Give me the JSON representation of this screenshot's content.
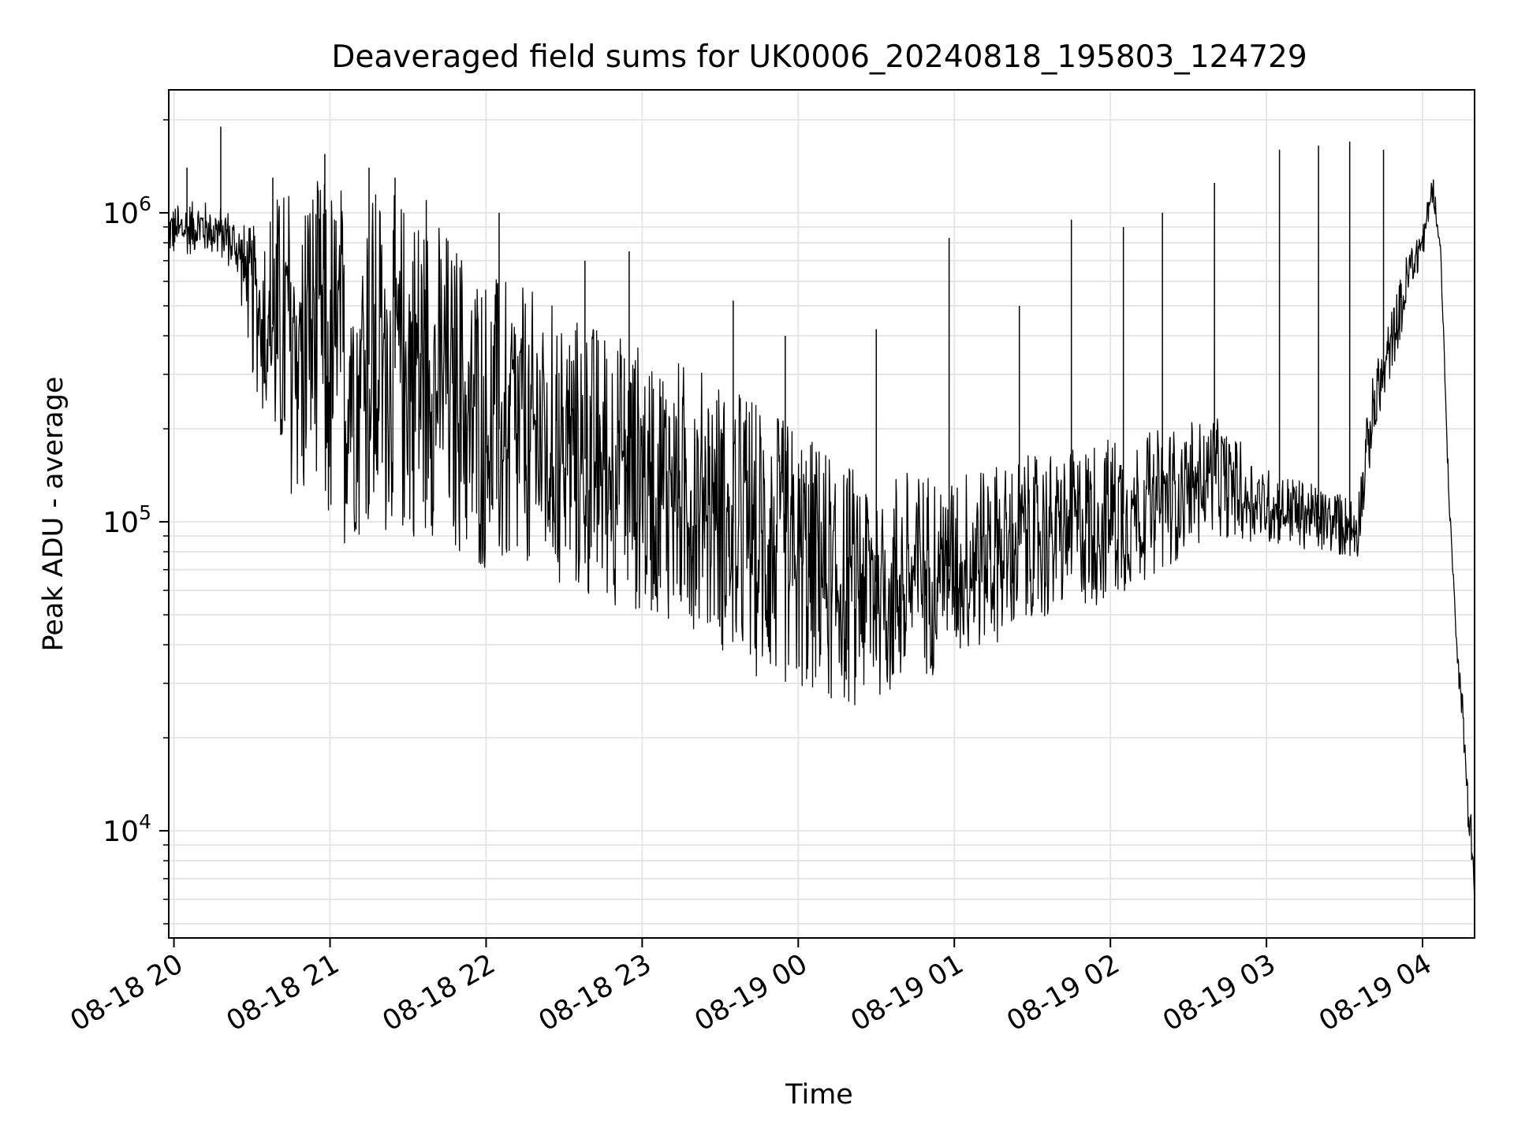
{
  "chart_data": {
    "type": "line",
    "title": "Deaveraged field sums for UK0006_20240818_195803_124729",
    "xlabel": "Time",
    "ylabel": "Peak ADU - average",
    "yscale": "log",
    "grid": true,
    "xlim": [
      "2024-08-18T19:58:00",
      "2024-08-19T04:20:00"
    ],
    "ylim": [
      4500,
      2500000
    ],
    "x_ticks": [
      {
        "t": "2024-08-18T20:00:00",
        "label": "08-18 20"
      },
      {
        "t": "2024-08-18T21:00:00",
        "label": "08-18 21"
      },
      {
        "t": "2024-08-18T22:00:00",
        "label": "08-18 22"
      },
      {
        "t": "2024-08-18T23:00:00",
        "label": "08-18 23"
      },
      {
        "t": "2024-08-19T00:00:00",
        "label": "08-19 00"
      },
      {
        "t": "2024-08-19T01:00:00",
        "label": "08-19 01"
      },
      {
        "t": "2024-08-19T02:00:00",
        "label": "08-19 02"
      },
      {
        "t": "2024-08-19T03:00:00",
        "label": "08-19 03"
      },
      {
        "t": "2024-08-19T04:00:00",
        "label": "08-19 04"
      }
    ],
    "y_ticks": [
      {
        "value": 10000,
        "base": "10",
        "exp": "4"
      },
      {
        "value": 100000,
        "base": "10",
        "exp": "5"
      },
      {
        "value": 1000000,
        "base": "10",
        "exp": "6"
      }
    ],
    "series": [
      {
        "color": "#000000",
        "envelope": [
          {
            "t": "2024-08-18T19:58:00",
            "low": 720000,
            "high": 1050000
          },
          {
            "t": "2024-08-18T20:10:00",
            "low": 740000,
            "high": 1100000
          },
          {
            "t": "2024-08-18T20:20:00",
            "low": 700000,
            "high": 1050000
          },
          {
            "t": "2024-08-18T20:25:00",
            "low": 550000,
            "high": 950000
          },
          {
            "t": "2024-08-18T20:30:00",
            "low": 300000,
            "high": 900000
          },
          {
            "t": "2024-08-18T20:35:00",
            "low": 200000,
            "high": 1000000
          },
          {
            "t": "2024-08-18T20:40:00",
            "low": 150000,
            "high": 1200000
          },
          {
            "t": "2024-08-18T20:50:00",
            "low": 100000,
            "high": 1300000
          },
          {
            "t": "2024-08-18T21:00:00",
            "low": 85000,
            "high": 1300000
          },
          {
            "t": "2024-08-18T21:20:00",
            "low": 85000,
            "high": 1200000
          },
          {
            "t": "2024-08-18T21:40:00",
            "low": 90000,
            "high": 1000000
          },
          {
            "t": "2024-08-18T22:00:00",
            "low": 65000,
            "high": 650000
          },
          {
            "t": "2024-08-18T22:20:00",
            "low": 60000,
            "high": 550000
          },
          {
            "t": "2024-08-18T22:40:00",
            "low": 55000,
            "high": 450000
          },
          {
            "t": "2024-08-18T23:00:00",
            "low": 50000,
            "high": 380000
          },
          {
            "t": "2024-08-18T23:20:00",
            "low": 45000,
            "high": 320000
          },
          {
            "t": "2024-08-18T23:40:00",
            "low": 32000,
            "high": 270000
          },
          {
            "t": "2024-08-19T00:00:00",
            "low": 28000,
            "high": 200000
          },
          {
            "t": "2024-08-19T00:20:00",
            "low": 25000,
            "high": 160000
          },
          {
            "t": "2024-08-19T00:40:00",
            "low": 28000,
            "high": 150000
          },
          {
            "t": "2024-08-19T01:00:00",
            "low": 35000,
            "high": 150000
          },
          {
            "t": "2024-08-19T01:20:00",
            "low": 42000,
            "high": 160000
          },
          {
            "t": "2024-08-19T01:40:00",
            "low": 48000,
            "high": 170000
          },
          {
            "t": "2024-08-19T02:00:00",
            "low": 55000,
            "high": 190000
          },
          {
            "t": "2024-08-19T02:20:00",
            "low": 70000,
            "high": 200000
          },
          {
            "t": "2024-08-19T02:40:00",
            "low": 90000,
            "high": 220000
          },
          {
            "t": "2024-08-19T03:00:00",
            "low": 85000,
            "high": 150000
          },
          {
            "t": "2024-08-19T03:20:00",
            "low": 80000,
            "high": 130000
          },
          {
            "t": "2024-08-19T03:35:00",
            "low": 75000,
            "high": 120000
          },
          {
            "t": "2024-08-19T03:40:00",
            "low": 150000,
            "high": 280000
          },
          {
            "t": "2024-08-19T03:48:00",
            "low": 300000,
            "high": 480000
          },
          {
            "t": "2024-08-19T03:55:00",
            "low": 500000,
            "high": 800000
          },
          {
            "t": "2024-08-19T04:00:00",
            "low": 700000,
            "high": 950000
          },
          {
            "t": "2024-08-19T04:04:00",
            "low": 1100000,
            "high": 1350000
          },
          {
            "t": "2024-08-19T04:07:00",
            "low": 700000,
            "high": 800000
          },
          {
            "t": "2024-08-19T04:10:00",
            "low": 120000,
            "high": 140000
          },
          {
            "t": "2024-08-19T04:13:00",
            "low": 40000,
            "high": 45000
          },
          {
            "t": "2024-08-19T04:16:00",
            "low": 15000,
            "high": 25000
          },
          {
            "t": "2024-08-19T04:19:00",
            "low": 7000,
            "high": 12000
          },
          {
            "t": "2024-08-19T04:20:00",
            "low": 5500,
            "high": 6500
          }
        ],
        "spikes": [
          {
            "t": "2024-08-18T20:05:00",
            "value": 1400000
          },
          {
            "t": "2024-08-18T20:18:00",
            "value": 1900000
          },
          {
            "t": "2024-08-18T20:38:00",
            "value": 1300000
          },
          {
            "t": "2024-08-18T20:58:00",
            "value": 1550000
          },
          {
            "t": "2024-08-18T21:15:00",
            "value": 1400000
          },
          {
            "t": "2024-08-18T21:25:00",
            "value": 1300000
          },
          {
            "t": "2024-08-18T21:37:00",
            "value": 1100000
          },
          {
            "t": "2024-08-18T22:05:00",
            "value": 1000000
          },
          {
            "t": "2024-08-18T22:38:00",
            "value": 700000
          },
          {
            "t": "2024-08-18T22:55:00",
            "value": 750000
          },
          {
            "t": "2024-08-18T23:35:00",
            "value": 520000
          },
          {
            "t": "2024-08-18T23:55:00",
            "value": 400000
          },
          {
            "t": "2024-08-19T00:30:00",
            "value": 420000
          },
          {
            "t": "2024-08-19T00:58:00",
            "value": 830000
          },
          {
            "t": "2024-08-19T01:25:00",
            "value": 500000
          },
          {
            "t": "2024-08-19T01:45:00",
            "value": 950000
          },
          {
            "t": "2024-08-19T02:05:00",
            "value": 900000
          },
          {
            "t": "2024-08-19T02:20:00",
            "value": 1000000
          },
          {
            "t": "2024-08-19T02:40:00",
            "value": 1250000
          },
          {
            "t": "2024-08-19T03:05:00",
            "value": 1600000
          },
          {
            "t": "2024-08-19T03:20:00",
            "value": 1650000
          },
          {
            "t": "2024-08-19T03:32:00",
            "value": 1700000
          },
          {
            "t": "2024-08-19T03:45:00",
            "value": 1600000
          }
        ]
      }
    ]
  }
}
